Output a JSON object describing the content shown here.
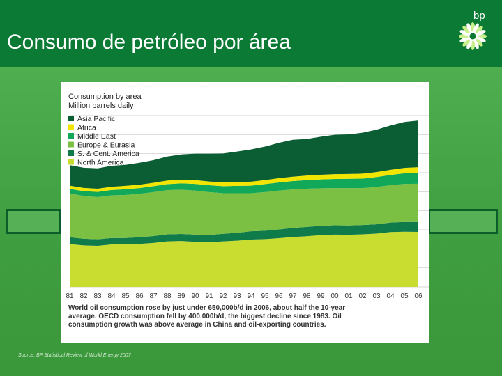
{
  "slide": {
    "title": "Consumo de petróleo por área",
    "logo_text": "bp",
    "source": "Source: BP Statistical Review of World Energy 2007"
  },
  "colors": {
    "header": "#0a7a35",
    "background": "#3f9a3f",
    "asia_pacific": "#0b5e33",
    "africa": "#f2e600",
    "middle_east": "#12a85a",
    "europe_eurasia": "#7cc043",
    "sc_america": "#0f7a4a",
    "north_america": "#c8dd2f"
  },
  "chart_data": {
    "type": "area",
    "stacked": true,
    "title": "Consumption by area",
    "subtitle": "Million barrels daily",
    "ylim": [
      0,
      90
    ],
    "y_axis_side": "right",
    "y_ticks": [
      0,
      10,
      20,
      30,
      40,
      50,
      60,
      70,
      80,
      90
    ],
    "x_tick_labels": [
      "81",
      "82",
      "83",
      "84",
      "85",
      "86",
      "87",
      "88",
      "89",
      "90",
      "91",
      "92",
      "93",
      "94",
      "95",
      "96",
      "97",
      "98",
      "99",
      "00",
      "01",
      "02",
      "03",
      "04",
      "05",
      "06"
    ],
    "legend_position": "top-left",
    "series": [
      {
        "name": "North America",
        "color": "#c8dd2f",
        "values": [
          22.5,
          21.8,
          21.6,
          22.3,
          22.3,
          22.6,
          23.1,
          23.9,
          24.1,
          23.7,
          23.4,
          23.9,
          24.3,
          24.9,
          25.1,
          25.6,
          26.2,
          26.6,
          27.2,
          27.5,
          27.4,
          27.6,
          28.0,
          28.8,
          29.0,
          28.9
        ]
      },
      {
        "name": "S. & Cent. America",
        "color": "#0f7a4a",
        "values": [
          3.6,
          3.5,
          3.4,
          3.4,
          3.4,
          3.5,
          3.6,
          3.7,
          3.7,
          3.8,
          3.9,
          4.0,
          4.1,
          4.3,
          4.4,
          4.6,
          4.8,
          4.9,
          4.9,
          4.9,
          4.9,
          4.9,
          4.9,
          5.0,
          5.1,
          5.2
        ]
      },
      {
        "name": "Europe & Eurasia",
        "color": "#7cc043",
        "values": [
          23.0,
          22.5,
          22.2,
          22.4,
          22.6,
          22.8,
          23.1,
          23.2,
          23.3,
          23.1,
          22.5,
          21.3,
          20.8,
          20.0,
          20.3,
          20.4,
          20.2,
          20.1,
          19.7,
          19.5,
          19.6,
          19.4,
          19.6,
          19.6,
          20.0,
          20.1
        ]
      },
      {
        "name": "Middle East",
        "color": "#12a85a",
        "values": [
          2.4,
          2.5,
          2.7,
          2.8,
          3.0,
          3.0,
          3.1,
          3.2,
          3.3,
          3.5,
          3.6,
          3.7,
          3.9,
          4.0,
          4.2,
          4.3,
          4.4,
          4.5,
          4.7,
          4.8,
          4.9,
          5.0,
          5.2,
          5.4,
          5.6,
          5.8
        ]
      },
      {
        "name": "Africa",
        "color": "#f2e600",
        "values": [
          1.7,
          1.7,
          1.7,
          1.7,
          1.8,
          1.8,
          1.8,
          1.9,
          1.9,
          2.0,
          2.0,
          2.0,
          2.0,
          2.1,
          2.1,
          2.2,
          2.3,
          2.4,
          2.4,
          2.5,
          2.5,
          2.6,
          2.6,
          2.7,
          2.8,
          2.9
        ]
      },
      {
        "name": "Asia Pacific",
        "color": "#0b5e33",
        "values": [
          10.8,
          10.6,
          10.7,
          11.0,
          11.0,
          11.5,
          11.9,
          12.6,
          13.3,
          13.9,
          14.6,
          15.2,
          16.0,
          16.9,
          17.6,
          18.6,
          19.4,
          19.2,
          20.0,
          20.7,
          20.8,
          21.5,
          22.3,
          23.3,
          24.1,
          24.5
        ]
      }
    ],
    "caption": "World oil consumption rose by just under 650,000b/d in 2006, about half the 10-year average. OECD consumption fell by 400,000b/d, the biggest decline since 1983. Oil consumption growth was above average in China and oil-exporting countries."
  }
}
